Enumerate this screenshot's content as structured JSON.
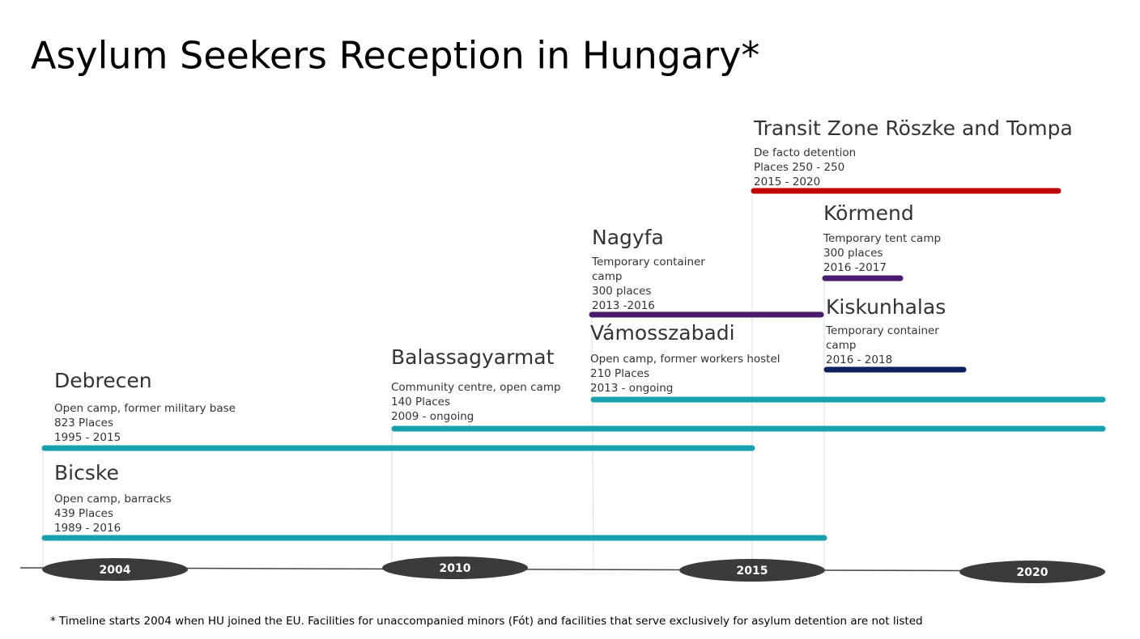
{
  "title": "Asylum Seekers Reception in Hungary*",
  "facilities": [
    {
      "name": "Transit Zone Röszke and Tompa",
      "lines": [
        "De facto detention",
        "Places 250 - 250",
        "2015 - 2020"
      ]
    },
    {
      "name": "Körmend",
      "lines": [
        "Temporary tent camp",
        "300 places",
        "2016 -2017"
      ]
    },
    {
      "name": "Nagyfa",
      "lines": [
        "Temporary container",
        "camp",
        "300 places",
        "2013 -2016"
      ]
    },
    {
      "name": "Kiskunhalas",
      "lines": [
        "Temporary container",
        "camp",
        "2016 - 2018"
      ]
    },
    {
      "name": "Vámosszabadi",
      "lines": [
        "Open camp, former workers hostel",
        "210 Places",
        "2013 - ongoing"
      ]
    },
    {
      "name": "Balassagyarmat",
      "lines": [
        "Community centre, open camp",
        "140 Places",
        "2009 - ongoing"
      ]
    },
    {
      "name": "Debrecen",
      "lines": [
        "Open camp, former military base",
        "823 Places",
        "1995 - 2015"
      ]
    },
    {
      "name": "Bicske",
      "lines": [
        "Open camp, barracks",
        "439 Places",
        "1989 - 2016"
      ]
    }
  ],
  "years": [
    "2004",
    "2010",
    "2015",
    "2020"
  ],
  "footnote": "* Timeline starts 2004 when HU joined the EU. Facilities for unaccompanied minors (Fót) and facilities that serve exclusively for asylum detention are not listed"
}
